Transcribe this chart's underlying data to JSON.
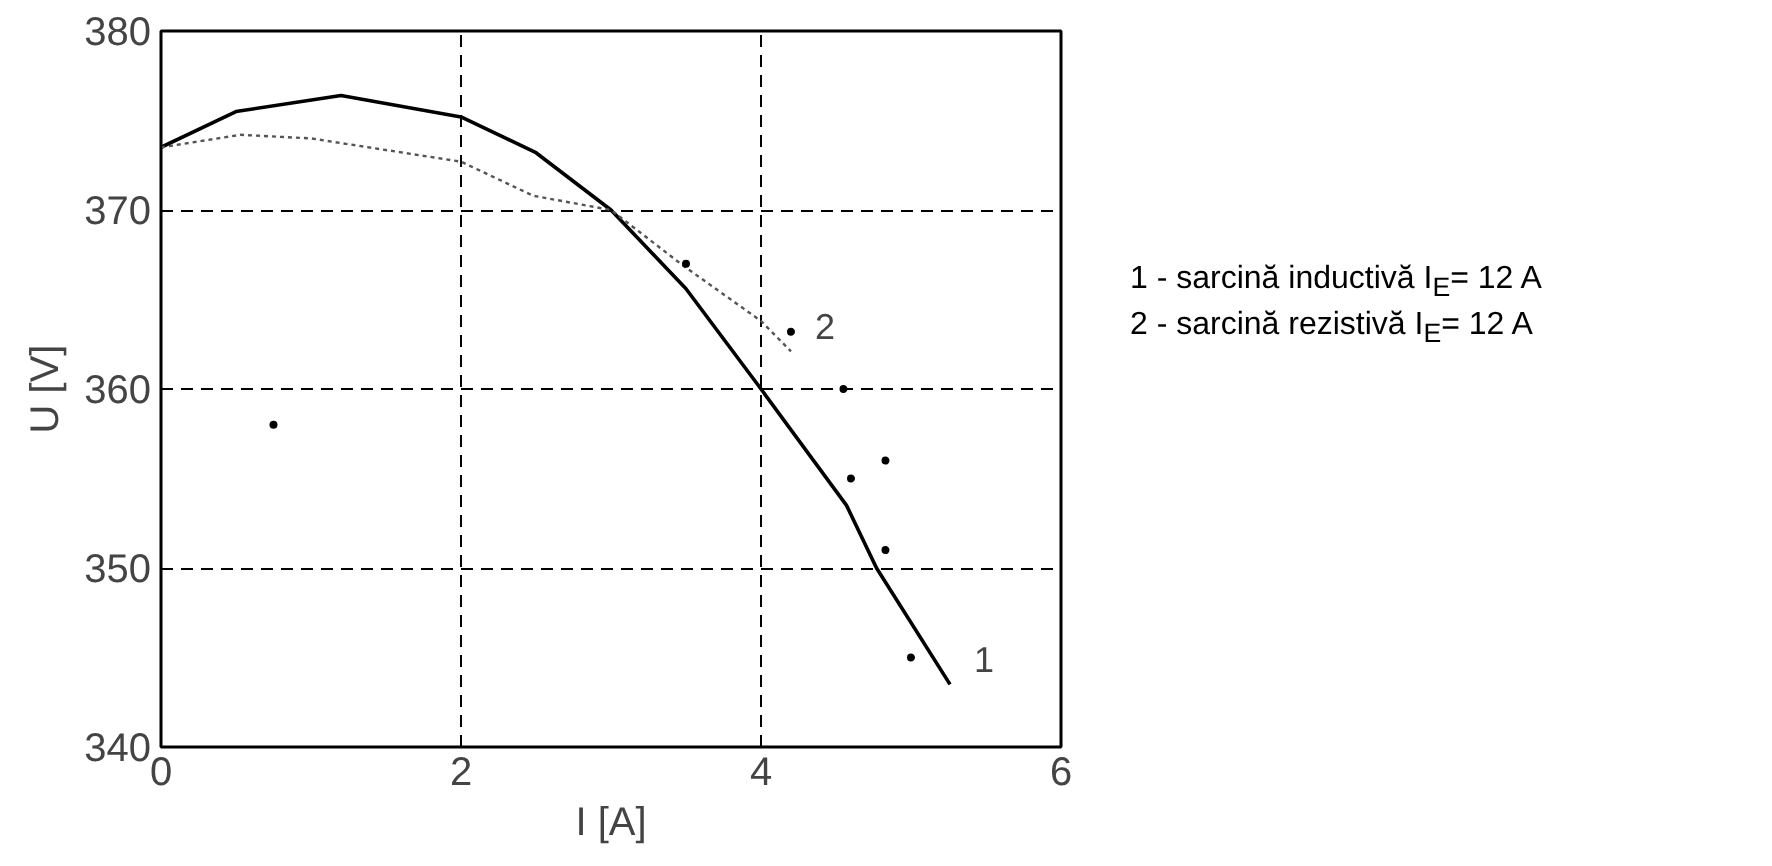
{
  "chart_data": {
    "type": "line",
    "xlabel": "I [A]",
    "ylabel": "U [V]",
    "xlim": [
      0,
      6
    ],
    "xticks": [
      0,
      2,
      4,
      6
    ],
    "ylim": [
      340,
      380
    ],
    "yticks": [
      340,
      350,
      360,
      370,
      380
    ],
    "grid": true,
    "series": [
      {
        "name": "1",
        "color": "#000000",
        "line_style": "solid",
        "x": [
          0,
          0.5,
          1.2,
          2,
          2.5,
          3,
          3.5,
          4,
          4.57,
          4.77,
          5.26
        ],
        "values": [
          373.5,
          375.5,
          376.4,
          375.2,
          373.2,
          370,
          365.6,
          360,
          353.5,
          350,
          343.5
        ]
      },
      {
        "name": "2",
        "color": "#555555",
        "line_style": "dotted",
        "x": [
          0,
          0.53,
          1.0,
          2,
          2.48,
          3,
          3.48,
          4.0,
          4.2
        ],
        "values": [
          373.5,
          374.2,
          374.0,
          372.7,
          370.8,
          370,
          366.9,
          363.8,
          362.1
        ]
      },
      {
        "type": "scatter",
        "color": "#000000",
        "marker": "circle",
        "x": [
          0.75,
          3.5,
          4.2,
          4.55,
          4.6,
          4.83,
          4.83,
          5.0
        ],
        "values": [
          358,
          367,
          363.2,
          360,
          355,
          356,
          351,
          345
        ]
      }
    ],
    "annotations": [
      "1 - sarcină inductivă I$_{E}$= 12 A",
      "2 - sarcină rezistivă I$_{E}$= 12 A"
    ]
  }
}
